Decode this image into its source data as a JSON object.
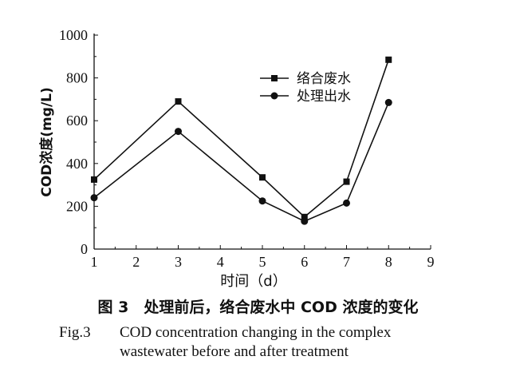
{
  "chart_data": {
    "type": "line",
    "xlabel": "时间（d）",
    "ylabel": "COD浓度(mg/L)",
    "xlim": [
      1,
      9
    ],
    "ylim": [
      0,
      1000
    ],
    "xticks": [
      1,
      2,
      3,
      4,
      5,
      6,
      7,
      8,
      9
    ],
    "yticks": [
      0,
      200,
      400,
      600,
      800,
      1000
    ],
    "grid": false,
    "legend_position": "top-right",
    "series": [
      {
        "name": "络合废水",
        "marker": "square",
        "x": [
          1,
          3,
          5,
          6,
          7,
          8
        ],
        "y": [
          325,
          690,
          335,
          150,
          315,
          885
        ]
      },
      {
        "name": "处理出水",
        "marker": "circle",
        "x": [
          1,
          3,
          5,
          6,
          7,
          8
        ],
        "y": [
          240,
          550,
          225,
          130,
          215,
          685
        ]
      }
    ]
  },
  "caption": {
    "cn": "图 3　处理前后，络合废水中 COD 浓度的变化",
    "en_label": "Fig.3",
    "en_line1": "COD concentration changing in the complex",
    "en_line2": "wastewater before and after treatment"
  }
}
